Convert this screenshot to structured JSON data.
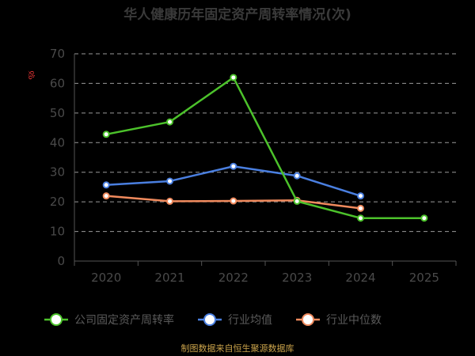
{
  "title": "华人健康历年固定资产周转率情况(次)",
  "source": "制图数据来自恒生聚源数据库",
  "watermark": "ૹ",
  "chart_data": {
    "type": "line",
    "title": "华人健康历年固定资产周转率情况(次)",
    "categories": [
      "2020",
      "2021",
      "2022",
      "2023",
      "2024",
      "2025"
    ],
    "ylim": [
      0,
      70
    ],
    "yticks": [
      0,
      10,
      20,
      30,
      40,
      50,
      60,
      70
    ],
    "grid": true,
    "legend_position": "bottom",
    "series": [
      {
        "name": "公司固定资产周转率",
        "color": "#4cc22b",
        "values": [
          42.8,
          47.0,
          62.0,
          20.2,
          14.5,
          14.5
        ]
      },
      {
        "name": "行业均值",
        "color": "#4a7fe0",
        "values": [
          25.7,
          27.0,
          32.0,
          28.8,
          22.0,
          null
        ]
      },
      {
        "name": "行业中位数",
        "color": "#f08a5d",
        "values": [
          22.0,
          20.2,
          20.3,
          20.5,
          17.8,
          null
        ]
      }
    ]
  }
}
